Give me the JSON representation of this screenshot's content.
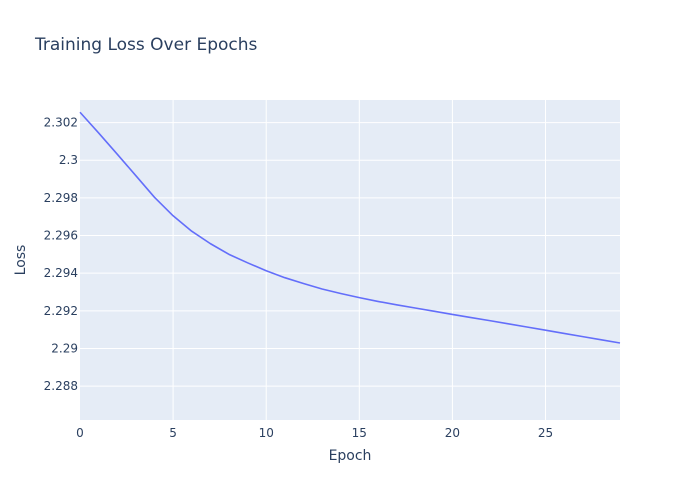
{
  "chart_data": {
    "type": "line",
    "title": "Training Loss Over Epochs",
    "xlabel": "Epoch",
    "ylabel": "Loss",
    "xlim": [
      0,
      29
    ],
    "ylim": [
      2.2862,
      2.3032
    ],
    "x_ticks": [
      0,
      5,
      10,
      15,
      20,
      25
    ],
    "y_ticks": [
      2.288,
      2.29,
      2.292,
      2.294,
      2.296,
      2.298,
      2.3,
      2.302
    ],
    "y_tick_labels": [
      "2.288",
      "2.29",
      "2.292",
      "2.294",
      "2.296",
      "2.298",
      "2.3",
      "2.302"
    ],
    "grid": true,
    "colors": {
      "plot_background": "#e5ecf6",
      "grid": "#ffffff",
      "line": "#636efa",
      "text": "#2a3f5f"
    },
    "series": [
      {
        "x": [
          0,
          1,
          2,
          3,
          4,
          5,
          6,
          7,
          8,
          9,
          10,
          11,
          12,
          13,
          14,
          15,
          16,
          17,
          18,
          19,
          20,
          21,
          22,
          23,
          24,
          25,
          26,
          27,
          28,
          29
        ],
        "values": [
          2.30255,
          2.30145,
          2.30032,
          2.29918,
          2.29803,
          2.29705,
          2.29623,
          2.29557,
          2.295,
          2.29455,
          2.29413,
          2.29376,
          2.29345,
          2.29316,
          2.29292,
          2.2927,
          2.2925,
          2.29232,
          2.29215,
          2.29198,
          2.29181,
          2.29164,
          2.29148,
          2.29131,
          2.29114,
          2.29097,
          2.2908,
          2.29063,
          2.29046,
          2.29029
        ]
      }
    ]
  }
}
